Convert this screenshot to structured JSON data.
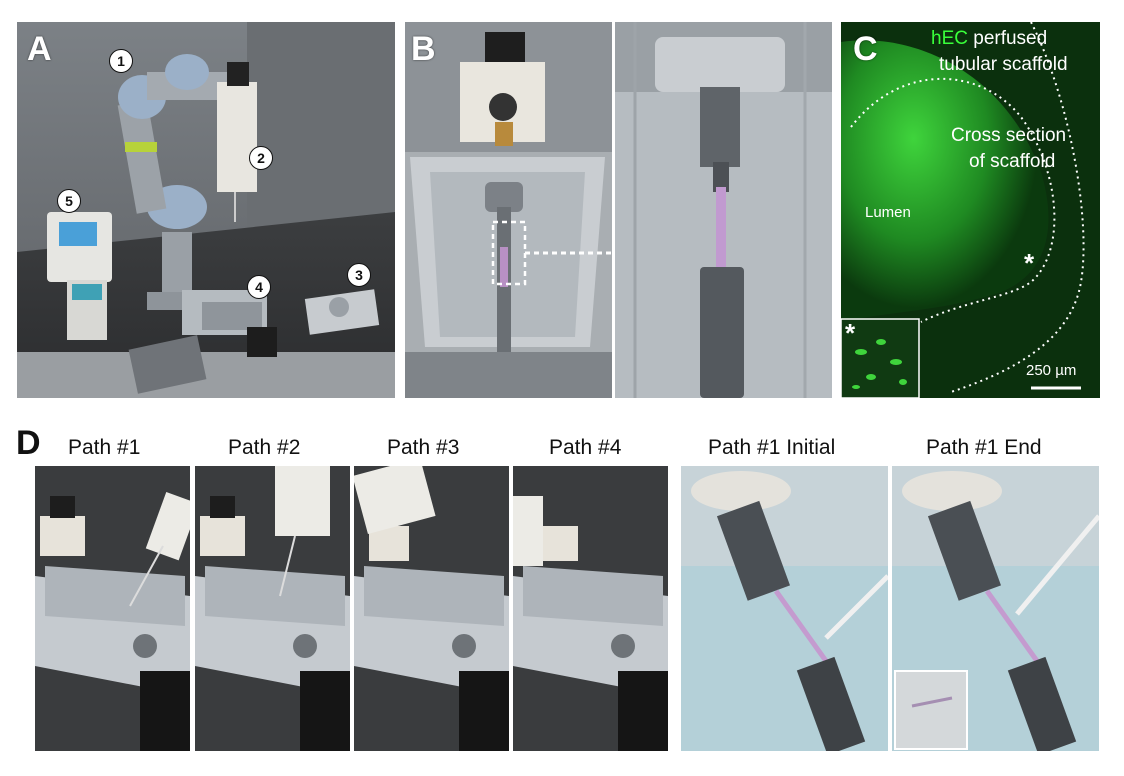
{
  "panels": {
    "A": {
      "letter": "A",
      "callouts": [
        "1",
        "2",
        "3",
        "4",
        "5"
      ]
    },
    "B": {
      "letter": "B"
    },
    "C": {
      "letter": "C",
      "title_highlight": "hEC",
      "title_rest_line1": "perfused",
      "title_line2": "tubular scaffold",
      "cross_line1": "Cross section",
      "cross_line2": "of scaffold",
      "lumen": "Lumen",
      "asterisk": "*",
      "scale_bar": "250 µm"
    },
    "D": {
      "letter": "D",
      "captions": [
        "Path #1",
        "Path #2",
        "Path #3",
        "Path #4",
        "Path #1  Initial",
        "Path #1  End"
      ]
    }
  },
  "colors": {
    "fluorescence": "#39ff3a",
    "steel": "#b8bec4",
    "dark_bg": "#2e302f"
  }
}
